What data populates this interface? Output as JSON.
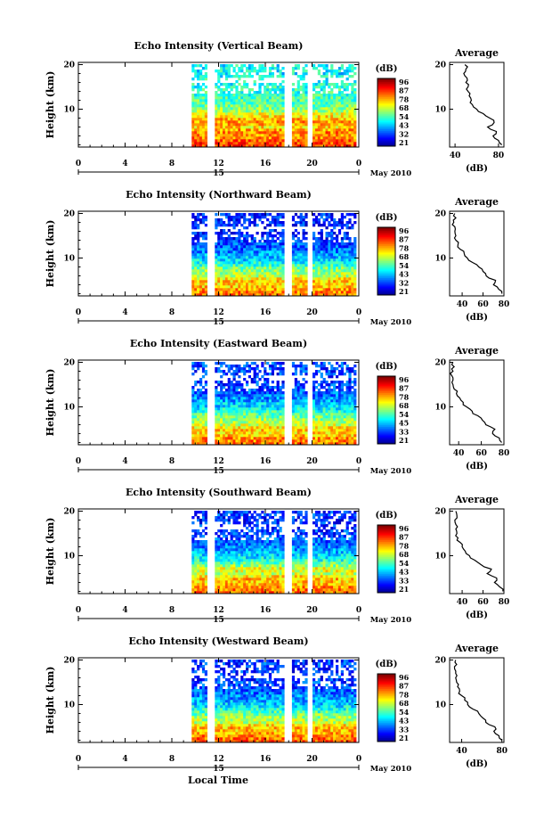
{
  "figure": {
    "xlabel_global": "Local Time",
    "date_label": "May 2010",
    "day_label": "15",
    "x_ticks": [
      "0",
      "4",
      "8",
      "12",
      "16",
      "20",
      "0"
    ],
    "y_ticks": [
      "20",
      "10"
    ],
    "ylabel": "Height (km)",
    "cb_unit": "(dB)",
    "cb_ticks": [
      "96",
      "87",
      "78",
      "68",
      "54",
      "43",
      "32",
      "21"
    ],
    "profile_title": "Average",
    "profile_xlabel": "(dB)"
  },
  "chart_data": [
    {
      "type": "heatmap",
      "title": "Echo Intensity (Vertical Beam)",
      "xlabel": "Local Time",
      "ylabel": "Height (km)",
      "xlim": [
        0,
        24
      ],
      "ylim": [
        1.5,
        20.5
      ],
      "colorbar": {
        "label": "(dB)",
        "ticks": [
          96,
          87,
          78,
          68,
          54,
          43,
          32,
          21
        ],
        "colormap": "jet"
      },
      "data_start_hour": 9.7,
      "data_end_hour": 23.7,
      "gaps_hours": [
        [
          11.1,
          11.5
        ],
        [
          17.8,
          18.2
        ],
        [
          19.7,
          20.0
        ]
      ],
      "profile": {
        "title": "Average",
        "xlabel": "(dB)",
        "xlim": [
          35,
          85
        ],
        "xticks": [
          40,
          80
        ],
        "height_km": [
          2,
          3,
          4,
          5,
          6,
          7,
          8,
          9,
          10,
          11,
          12,
          13,
          14,
          15,
          16,
          17,
          18,
          19,
          20
        ],
        "avg_db": [
          83,
          80,
          75,
          78,
          70,
          76,
          72,
          66,
          60,
          56,
          55,
          53,
          52,
          52,
          50,
          51,
          48,
          50,
          49
        ]
      }
    },
    {
      "type": "heatmap",
      "title": "Echo Intensity (Northward Beam)",
      "xlabel": "Local Time",
      "ylabel": "Height (km)",
      "xlim": [
        0,
        24
      ],
      "ylim": [
        1.5,
        20.5
      ],
      "colorbar": {
        "label": "(dB)",
        "ticks": [
          96,
          87,
          78,
          68,
          54,
          43,
          32,
          21
        ],
        "colormap": "jet"
      },
      "data_start_hour": 9.7,
      "data_end_hour": 23.7,
      "gaps_hours": [
        [
          11.1,
          11.5
        ],
        [
          17.8,
          18.2
        ],
        [
          19.7,
          20.0
        ]
      ],
      "profile": {
        "title": "Average",
        "xlabel": "(dB)",
        "xlim": [
          28,
          80
        ],
        "xticks": [
          40,
          60,
          80
        ],
        "height_km": [
          2,
          3,
          4,
          5,
          6,
          7,
          8,
          9,
          10,
          11,
          12,
          13,
          14,
          15,
          16,
          17,
          18,
          19,
          20
        ],
        "avg_db": [
          78,
          75,
          70,
          72,
          63,
          60,
          56,
          50,
          45,
          42,
          38,
          36,
          34,
          34,
          33,
          33,
          32,
          34,
          33
        ]
      }
    },
    {
      "type": "heatmap",
      "title": "Echo Intensity (Eastward Beam)",
      "xlabel": "Local Time",
      "ylabel": "Height (km)",
      "xlim": [
        0,
        24
      ],
      "ylim": [
        1.5,
        20.5
      ],
      "colorbar": {
        "label": "(dB)",
        "ticks": [
          96,
          87,
          78,
          68,
          54,
          45,
          33,
          21
        ],
        "colormap": "jet"
      },
      "data_start_hour": 9.7,
      "data_end_hour": 23.7,
      "gaps_hours": [
        [
          11.1,
          11.5
        ],
        [
          17.8,
          18.2
        ],
        [
          19.7,
          20.0
        ]
      ],
      "profile": {
        "title": "Average",
        "xlabel": "(dB)",
        "xlim": [
          32,
          80
        ],
        "xticks": [
          40,
          60,
          80
        ],
        "height_km": [
          2,
          3,
          4,
          5,
          6,
          7,
          8,
          9,
          10,
          11,
          12,
          13,
          14,
          15,
          16,
          17,
          18,
          19,
          20
        ],
        "avg_db": [
          78,
          76,
          70,
          72,
          64,
          61,
          57,
          52,
          47,
          44,
          41,
          38,
          36,
          35,
          35,
          34,
          35,
          36,
          35
        ]
      }
    },
    {
      "type": "heatmap",
      "title": "Echo Intensity (Southward Beam)",
      "xlabel": "Local Time",
      "ylabel": "Height (km)",
      "xlim": [
        0,
        24
      ],
      "ylim": [
        1.5,
        20.5
      ],
      "colorbar": {
        "label": "(dB)",
        "ticks": [
          96,
          87,
          78,
          68,
          54,
          43,
          33,
          21
        ],
        "colormap": "jet"
      },
      "data_start_hour": 9.7,
      "data_end_hour": 23.7,
      "gaps_hours": [
        [
          11.1,
          11.5
        ],
        [
          17.8,
          18.2
        ],
        [
          19.7,
          20.0
        ]
      ],
      "profile": {
        "title": "Average",
        "xlabel": "(dB)",
        "xlim": [
          28,
          80
        ],
        "xticks": [
          40,
          60,
          80
        ],
        "height_km": [
          2,
          3,
          4,
          5,
          6,
          7,
          8,
          9,
          10,
          11,
          12,
          13,
          14,
          15,
          16,
          17,
          18,
          19,
          20
        ],
        "avg_db": [
          79,
          76,
          71,
          73,
          64,
          68,
          58,
          52,
          47,
          43,
          40,
          38,
          36,
          35,
          34,
          34,
          33,
          35,
          34
        ]
      }
    },
    {
      "type": "heatmap",
      "title": "Echo Intensity (Westward Beam)",
      "xlabel": "Local Time",
      "ylabel": "Height (km)",
      "xlim": [
        0,
        24
      ],
      "ylim": [
        1.5,
        20.5
      ],
      "colorbar": {
        "label": "(dB)",
        "ticks": [
          96,
          87,
          78,
          68,
          54,
          43,
          33,
          21
        ],
        "colormap": "jet"
      },
      "data_start_hour": 9.7,
      "data_end_hour": 23.7,
      "gaps_hours": [
        [
          11.1,
          11.5
        ],
        [
          17.8,
          18.2
        ],
        [
          19.7,
          20.0
        ]
      ],
      "profile": {
        "title": "Average",
        "xlabel": "(dB)",
        "xlim": [
          28,
          82
        ],
        "xticks": [
          40,
          80
        ],
        "height_km": [
          2,
          3,
          4,
          5,
          6,
          7,
          8,
          9,
          10,
          11,
          12,
          13,
          14,
          15,
          16,
          17,
          18,
          19,
          20
        ],
        "avg_db": [
          80,
          77,
          72,
          73,
          64,
          61,
          57,
          51,
          46,
          43,
          40,
          38,
          36,
          35,
          34,
          34,
          33,
          35,
          34
        ]
      }
    }
  ]
}
